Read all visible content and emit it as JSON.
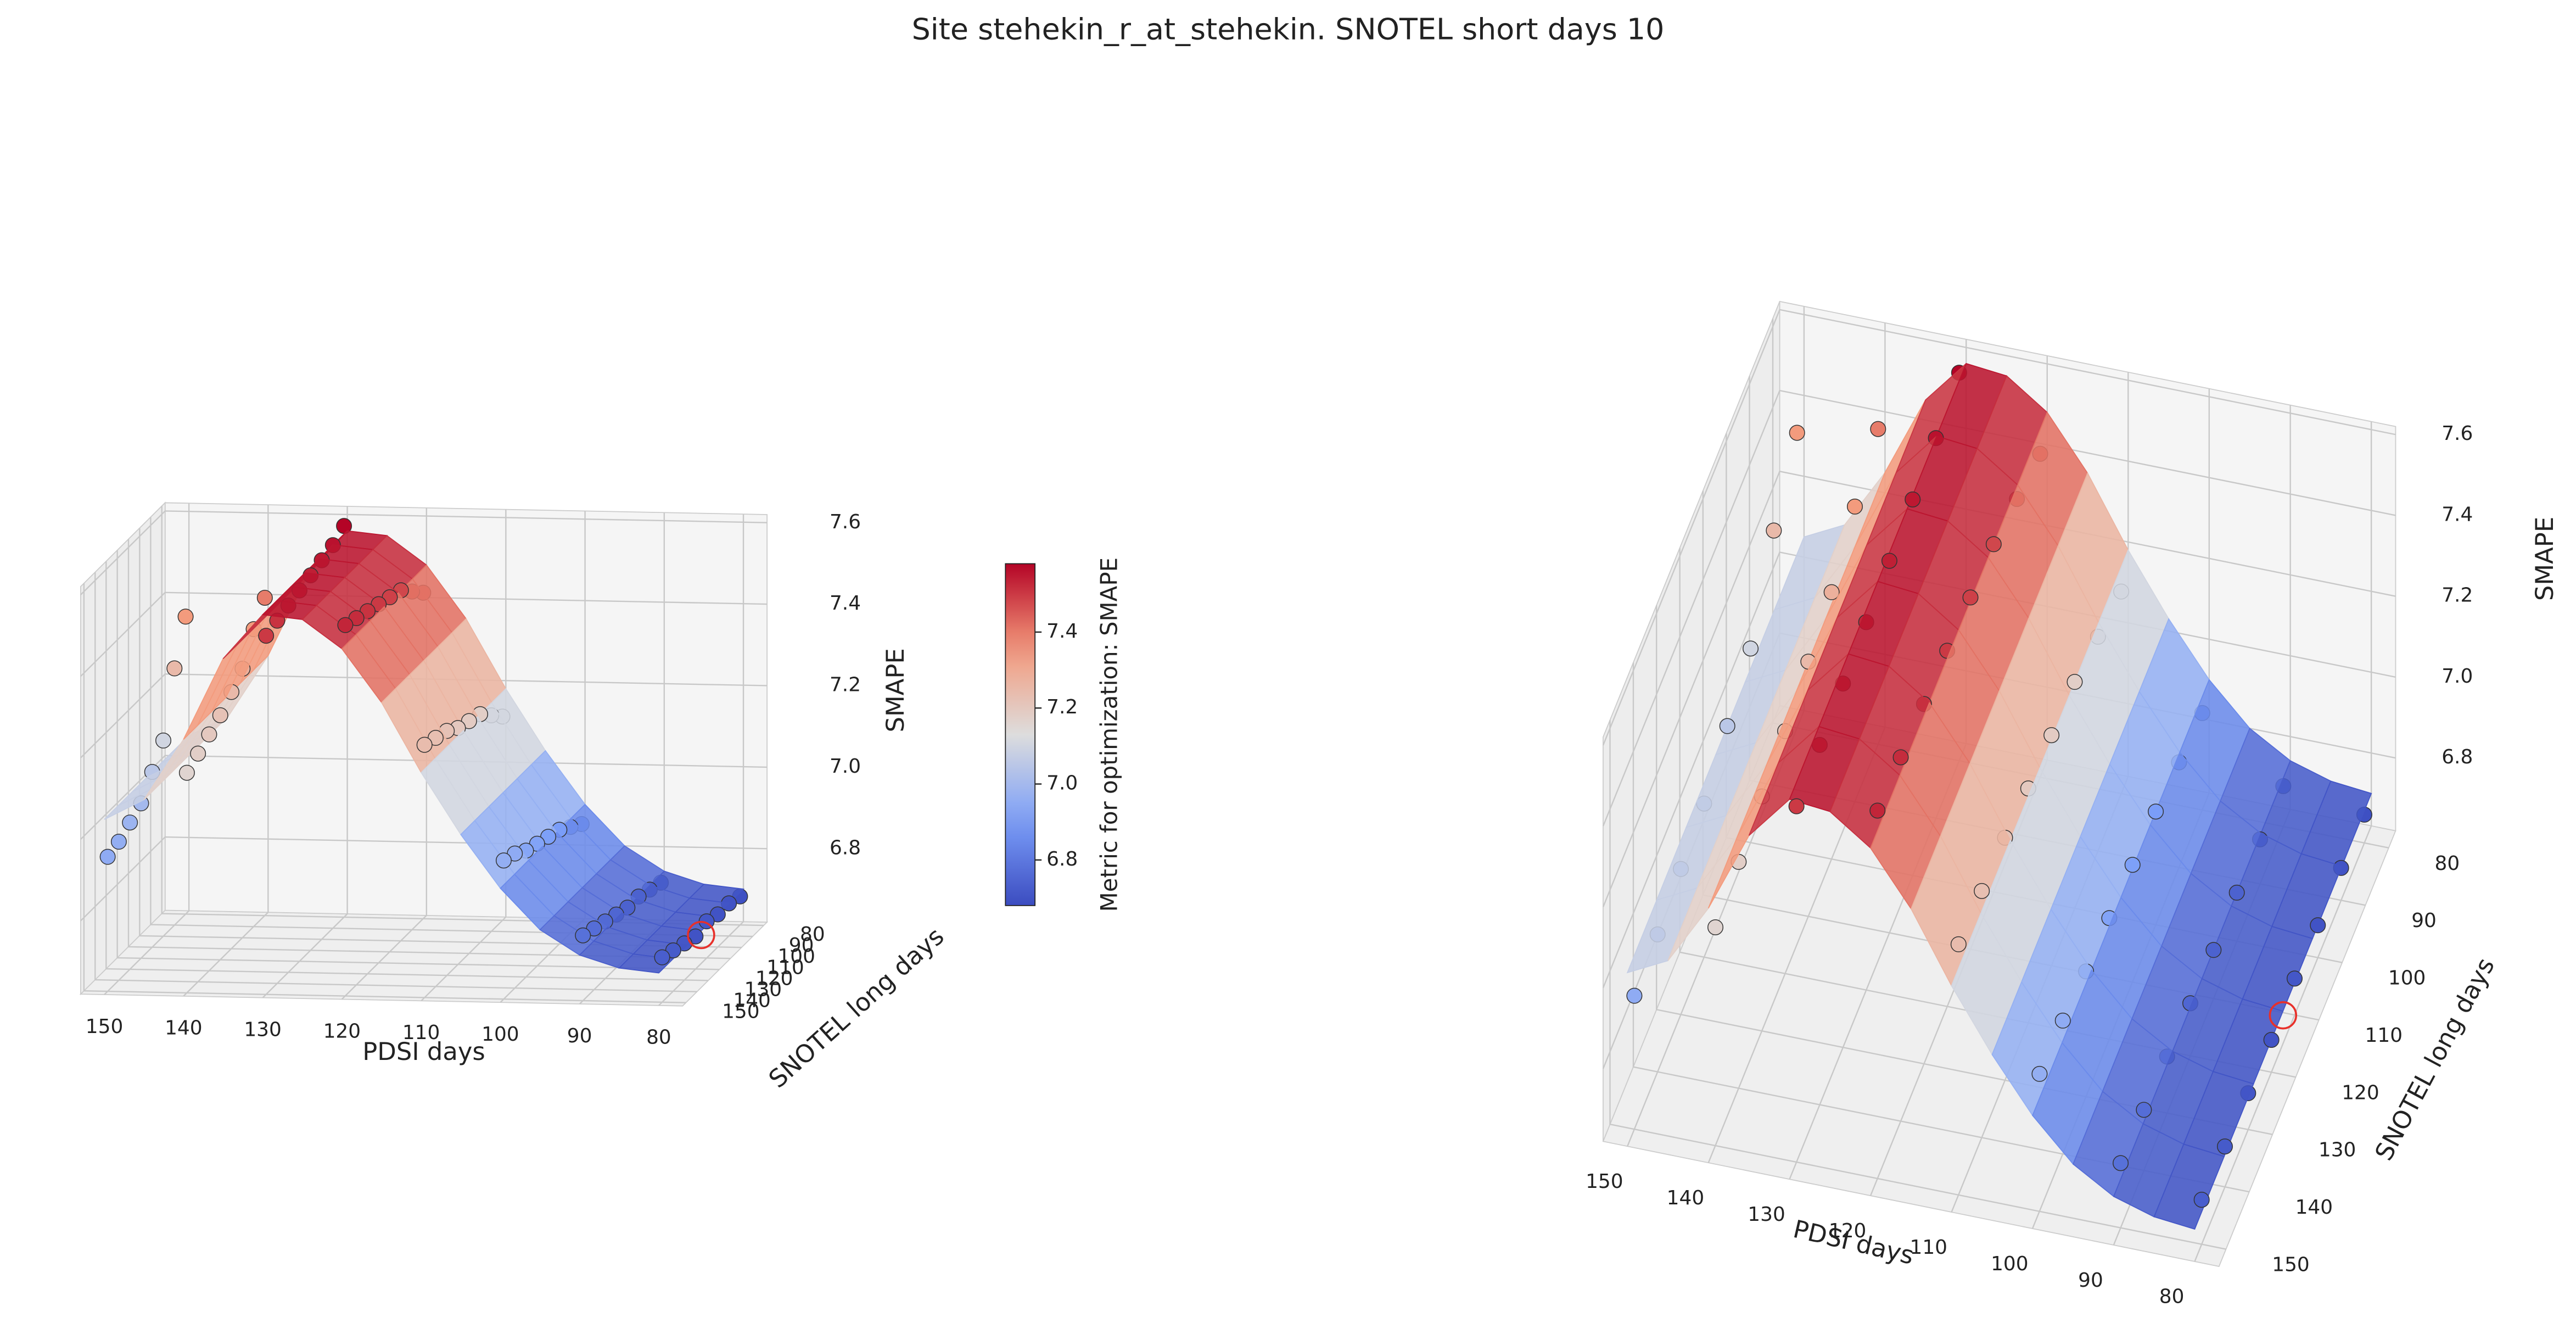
{
  "title": "Site stehekin_r_at_stehekin. SNOTEL short days 10",
  "chart_data": [
    {
      "type": "surface3d",
      "x_label": "PDSI days",
      "y_label": "SNOTEL long days",
      "z_label": "SMAPE",
      "xlim": [
        77,
        153
      ],
      "ylim": [
        77,
        153
      ],
      "zlim": [
        6.62,
        7.62
      ],
      "xticks": [
        80,
        90,
        100,
        110,
        120,
        130,
        140,
        150
      ],
      "yticks": [
        80,
        90,
        100,
        110,
        120,
        130,
        140,
        150
      ],
      "zticks": [
        6.8,
        {
          "value": 7,
          "label": "7.0"
        },
        7.2,
        7.4,
        7.6
      ],
      "colormap": "coolwarm",
      "clim": [
        6.68,
        7.58
      ],
      "grid": true,
      "surface": {
        "x": [
          80,
          85,
          90,
          95,
          100,
          105,
          110,
          115,
          120,
          125,
          130,
          135,
          140,
          145,
          150
        ],
        "z": [
          6.7,
          6.71,
          6.74,
          6.8,
          6.9,
          7.03,
          7.18,
          7.35,
          7.48,
          7.55,
          7.56,
          7.45,
          7.25,
          7.1,
          7.05
        ]
      },
      "scatter": {
        "pdsi": [
          80,
          90,
          100,
          110,
          120,
          130,
          140,
          150
        ],
        "snotel": [
          80,
          90,
          100,
          110,
          120,
          130,
          140,
          150
        ],
        "smape": [
          [
            6.69,
            6.7,
            6.7,
            6.71,
            6.7,
            6.71,
            6.72,
            6.73
          ],
          [
            6.72,
            6.73,
            6.74,
            6.74,
            6.75,
            6.76,
            6.77,
            6.78
          ],
          [
            6.86,
            6.88,
            6.9,
            6.91,
            6.92,
            6.93,
            6.95,
            6.96
          ],
          [
            7.12,
            7.15,
            7.18,
            7.19,
            7.2,
            7.22,
            7.23,
            7.24
          ],
          [
            7.42,
            7.45,
            7.48,
            7.49,
            7.5,
            7.51,
            7.52,
            7.53
          ],
          [
            7.58,
            7.56,
            7.55,
            7.54,
            7.53,
            7.52,
            7.51,
            7.5
          ],
          [
            7.4,
            7.35,
            7.28,
            7.25,
            7.22,
            7.2,
            7.18,
            7.16
          ],
          [
            7.35,
            7.25,
            7.1,
            7.05,
            7.0,
            6.98,
            6.96,
            6.95
          ]
        ]
      },
      "best": {
        "pdsi": 80,
        "snotel": 115,
        "smape": 6.69,
        "color": "#e8302a"
      },
      "colorbar": {
        "label": "Metric for optimization: SMAPE",
        "ticks": [
          6.8,
          {
            "value": 7,
            "label": "7.0"
          },
          7.2,
          7.4
        ]
      }
    },
    {
      "type": "surface3d",
      "x_label": "PDSI days",
      "y_label": "SNOTEL long days",
      "z_label": "SMAPE",
      "xlim": [
        77,
        153
      ],
      "ylim": [
        77,
        153
      ],
      "zlim": [
        6.62,
        7.62
      ],
      "xticks": [
        80,
        90,
        100,
        110,
        120,
        130,
        140,
        150
      ],
      "yticks": [
        80,
        90,
        100,
        110,
        120,
        130,
        140,
        150
      ],
      "zticks": [
        6.8,
        {
          "value": 7,
          "label": "7.0"
        },
        7.2,
        7.4,
        7.6
      ],
      "colormap": "coolwarm",
      "clim": [
        6.68,
        7.58
      ],
      "grid": true,
      "surface": {
        "x": [
          80,
          85,
          90,
          95,
          100,
          105,
          110,
          115,
          120,
          125,
          130,
          135,
          140,
          145,
          150
        ],
        "z": [
          6.7,
          6.71,
          6.74,
          6.8,
          6.9,
          7.03,
          7.18,
          7.35,
          7.48,
          7.55,
          7.56,
          7.45,
          7.25,
          7.1,
          7.05
        ]
      },
      "scatter": {
        "pdsi": [
          80,
          90,
          100,
          110,
          120,
          130,
          140,
          150
        ],
        "snotel": [
          80,
          90,
          100,
          110,
          120,
          130,
          140,
          150
        ],
        "smape": [
          [
            6.69,
            6.7,
            6.7,
            6.71,
            6.7,
            6.71,
            6.72,
            6.73
          ],
          [
            6.72,
            6.73,
            6.74,
            6.74,
            6.75,
            6.76,
            6.77,
            6.78
          ],
          [
            6.86,
            6.88,
            6.9,
            6.91,
            6.92,
            6.93,
            6.95,
            6.96
          ],
          [
            7.12,
            7.15,
            7.18,
            7.19,
            7.2,
            7.22,
            7.23,
            7.24
          ],
          [
            7.42,
            7.45,
            7.48,
            7.49,
            7.5,
            7.51,
            7.52,
            7.53
          ],
          [
            7.58,
            7.56,
            7.55,
            7.54,
            7.53,
            7.52,
            7.51,
            7.5
          ],
          [
            7.4,
            7.35,
            7.28,
            7.25,
            7.22,
            7.2,
            7.18,
            7.16
          ],
          [
            7.35,
            7.25,
            7.1,
            7.05,
            7.0,
            6.98,
            6.96,
            6.95
          ]
        ]
      },
      "best": {
        "pdsi": 80,
        "snotel": 115,
        "smape": 6.69,
        "color": "#e8302a"
      }
    }
  ]
}
